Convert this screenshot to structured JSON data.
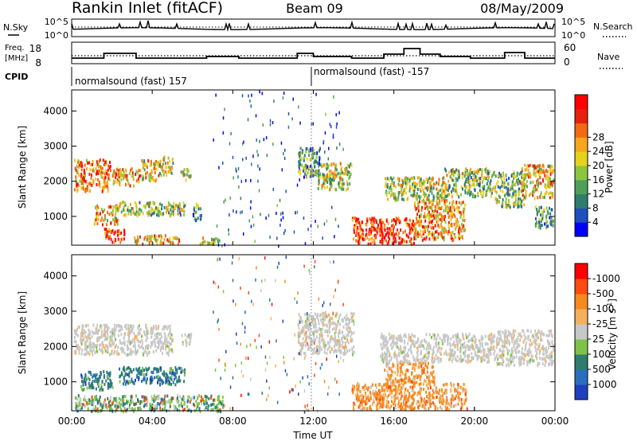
{
  "header": {
    "station": "Rankin Inlet (fitACF)",
    "beam": "Beam 09",
    "date": "08/May/2009"
  },
  "noise_panel": {
    "left_label": "N.Sky",
    "right_label": "N.Search",
    "left_ticks": [
      "10^5",
      "10^0"
    ],
    "right_ticks": [
      "10^5",
      "10^0"
    ]
  },
  "freq_panel": {
    "left_label_line1": "Freq.",
    "left_label_line2": "[MHz]",
    "left_ticks": [
      "18",
      "8"
    ],
    "right_label": "Nave",
    "right_ticks": [
      "60",
      "0"
    ]
  },
  "cpid": {
    "label": "CPID",
    "modes": [
      {
        "name": "normalsound (fast) 157",
        "start_hour": 0
      },
      {
        "name": "normalsound (fast) -157",
        "start_hour": 12
      }
    ]
  },
  "chart_data": [
    {
      "type": "heatmap",
      "title": "",
      "xlabel": "Time UT",
      "ylabel": "Slant Range [km]",
      "x_ticks": [
        "00:00",
        "04:00",
        "08:00",
        "12:00",
        "16:00",
        "20:00",
        "00:00"
      ],
      "xlim_hours": [
        0,
        24
      ],
      "y_ticks": [
        1000,
        2000,
        3000,
        4000
      ],
      "ylim_km": [
        180,
        4600
      ],
      "colorbar": {
        "label": "Power [dB]",
        "ticks": [
          "4",
          "8",
          "12",
          "16",
          "20",
          "24",
          "28"
        ],
        "range": [
          0,
          30
        ],
        "colors": [
          "#0000ff",
          "#1f4fbf",
          "#2e7d6e",
          "#4f9f5a",
          "#8cc63f",
          "#e6d21c",
          "#f7a61e",
          "#f46a12",
          "#e8200e",
          "#ff0000"
        ]
      },
      "echo_regions": [
        {
          "t0": 0.1,
          "t1": 1.9,
          "r0": 1750,
          "r1": 2650,
          "level": 0.72
        },
        {
          "t0": 2.0,
          "t1": 3.4,
          "r0": 1900,
          "r1": 2400,
          "level": 0.68
        },
        {
          "t0": 3.4,
          "t1": 4.3,
          "r0": 2050,
          "r1": 2650,
          "level": 0.55
        },
        {
          "t0": 4.3,
          "t1": 5.0,
          "r0": 2200,
          "r1": 2750,
          "level": 0.5
        },
        {
          "t0": 5.4,
          "t1": 5.9,
          "r0": 2050,
          "r1": 2400,
          "level": 0.5
        },
        {
          "t0": 1.1,
          "t1": 2.3,
          "r0": 800,
          "r1": 1350,
          "level": 0.62
        },
        {
          "t0": 2.3,
          "t1": 5.6,
          "r0": 1050,
          "r1": 1450,
          "level": 0.45
        },
        {
          "t0": 6.0,
          "t1": 6.4,
          "r0": 900,
          "r1": 1400,
          "level": 0.35
        },
        {
          "t0": 1.6,
          "t1": 2.6,
          "r0": 300,
          "r1": 700,
          "level": 0.85
        },
        {
          "t0": 3.0,
          "t1": 5.4,
          "r0": 250,
          "r1": 500,
          "level": 0.6
        },
        {
          "t0": 6.3,
          "t1": 7.4,
          "r0": 250,
          "r1": 450,
          "level": 0.45
        },
        {
          "t0": 11.2,
          "t1": 12.3,
          "r0": 2150,
          "r1": 3000,
          "level": 0.35
        },
        {
          "t0": 12.2,
          "t1": 13.9,
          "r0": 1800,
          "r1": 2550,
          "level": 0.5
        },
        {
          "t0": 13.9,
          "t1": 17.0,
          "r0": 250,
          "r1": 1000,
          "level": 0.85
        },
        {
          "t0": 17.0,
          "t1": 19.5,
          "r0": 350,
          "r1": 1500,
          "level": 0.68
        },
        {
          "t0": 15.5,
          "t1": 18.6,
          "r0": 1500,
          "r1": 2150,
          "level": 0.48
        },
        {
          "t0": 18.5,
          "t1": 21.0,
          "r0": 1600,
          "r1": 2400,
          "level": 0.45
        },
        {
          "t0": 21.0,
          "t1": 22.5,
          "r0": 1300,
          "r1": 2300,
          "level": 0.4
        },
        {
          "t0": 22.3,
          "t1": 23.9,
          "r0": 1550,
          "r1": 2500,
          "level": 0.6
        },
        {
          "t0": 23.0,
          "t1": 23.9,
          "r0": 700,
          "r1": 1300,
          "level": 0.3
        }
      ]
    },
    {
      "type": "heatmap",
      "title": "",
      "xlabel": "Time UT",
      "ylabel": "Slant Range [km]",
      "x_ticks": [
        "00:00",
        "04:00",
        "08:00",
        "12:00",
        "16:00",
        "20:00",
        "00:00"
      ],
      "xlim_hours": [
        0,
        24
      ],
      "y_ticks": [
        1000,
        2000,
        3000,
        4000
      ],
      "ylim_km": [
        180,
        4600
      ],
      "colorbar": {
        "label": "Velocity [m s^-1]",
        "ticks": [
          "1000",
          "500",
          "100",
          "25",
          "-25",
          "-100",
          "-500",
          "-1000"
        ],
        "colors": [
          "#1f3fbf",
          "#2a6fbf",
          "#2e7d6e",
          "#7fc24a",
          "#c8c8c8",
          "#f5b05a",
          "#f58a1e",
          "#ff4a10",
          "#ff0000"
        ]
      },
      "echo_regions": [
        {
          "t0": 0.1,
          "t1": 5.0,
          "r0": 1800,
          "r1": 2650,
          "v_class": "ground"
        },
        {
          "t0": 5.4,
          "t1": 5.9,
          "r0": 2050,
          "r1": 2400,
          "v_class": "ground"
        },
        {
          "t0": 0.4,
          "t1": 2.0,
          "r0": 800,
          "r1": 1350,
          "v_class": "positive_mid"
        },
        {
          "t0": 2.3,
          "t1": 5.6,
          "r0": 950,
          "r1": 1450,
          "v_class": "positive_mid"
        },
        {
          "t0": 0.1,
          "t1": 7.5,
          "r0": 200,
          "r1": 650,
          "v_class": "positive_low"
        },
        {
          "t0": 11.2,
          "t1": 14.0,
          "r0": 1800,
          "r1": 3000,
          "v_class": "ground"
        },
        {
          "t0": 13.9,
          "t1": 19.6,
          "r0": 250,
          "r1": 1000,
          "v_class": "negative"
        },
        {
          "t0": 15.5,
          "t1": 18.0,
          "r0": 1000,
          "r1": 1600,
          "v_class": "negative"
        },
        {
          "t0": 15.3,
          "t1": 21.0,
          "r0": 1600,
          "r1": 2400,
          "v_class": "ground"
        },
        {
          "t0": 21.0,
          "t1": 23.9,
          "r0": 1500,
          "r1": 2500,
          "v_class": "ground"
        }
      ]
    }
  ]
}
